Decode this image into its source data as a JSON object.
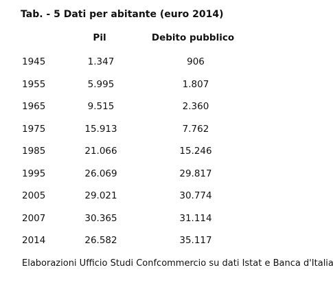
{
  "chart_data": {
    "type": "table",
    "title": "Tab. - 5 Dati per abitante (euro 2014)",
    "columns": [
      "Pil",
      "Debito pubblico"
    ],
    "rows": [
      {
        "year": "1945",
        "pil": "1.347",
        "debito": "906"
      },
      {
        "year": "1955",
        "pil": "5.995",
        "debito": "1.807"
      },
      {
        "year": "1965",
        "pil": "9.515",
        "debito": "2.360"
      },
      {
        "year": "1975",
        "pil": "15.913",
        "debito": "7.762"
      },
      {
        "year": "1985",
        "pil": "21.066",
        "debito": "15.246"
      },
      {
        "year": "1995",
        "pil": "26.069",
        "debito": "29.817"
      },
      {
        "year": "2005",
        "pil": "29.021",
        "debito": "30.774"
      },
      {
        "year": "2007",
        "pil": "30.365",
        "debito": "31.114"
      },
      {
        "year": "2014",
        "pil": "26.582",
        "debito": "35.117"
      }
    ],
    "source": "Elaborazioni Ufficio Studi Confcommercio su dati Istat e Banca d'Italia"
  }
}
